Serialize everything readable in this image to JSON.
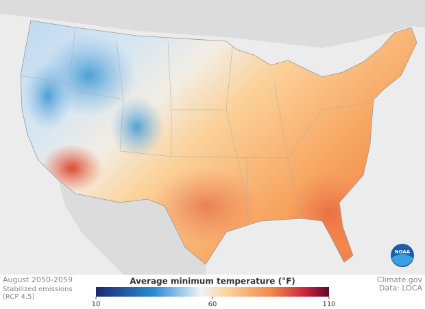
{
  "header": {
    "period": "August 2050-2059",
    "scenario": "Stabilized emissions",
    "scenario_code": "(RCP 4.5)"
  },
  "legend": {
    "title": "Average minimum temperature (°F)",
    "lim": [
      10,
      110
    ],
    "ticks": [
      10,
      60,
      110
    ]
  },
  "credits": {
    "source": "Climate.gov",
    "data": "Data: LOCA",
    "logo": "NOAA"
  }
}
